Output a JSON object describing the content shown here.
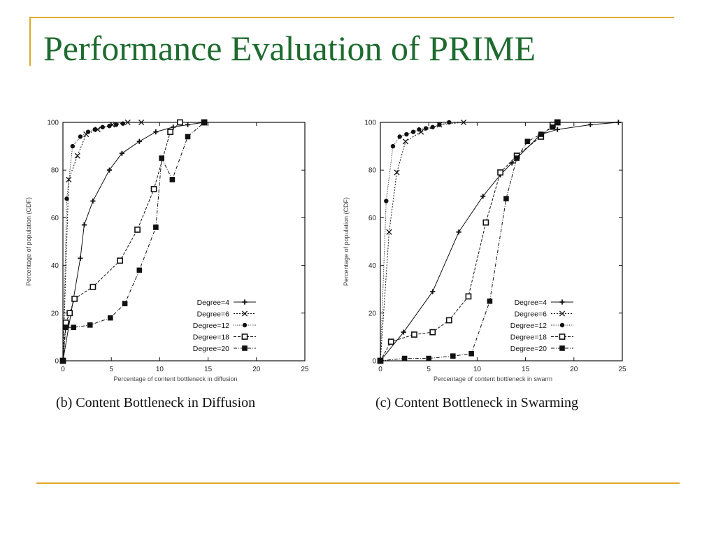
{
  "slide": {
    "title": "Performance Evaluation of PRIME",
    "accent_color": "#e0a82a",
    "title_color": "#1e6b2f"
  },
  "chart_data": [
    {
      "type": "line",
      "caption": "(b) Content Bottleneck in Diffusion",
      "xlabel": "Percentage of content bottleneck in diffusion",
      "ylabel": "Percentage of population (CDF)",
      "xlim": [
        0,
        25
      ],
      "ylim": [
        0,
        100
      ],
      "x_ticks": [
        "0",
        "5",
        "10",
        "15",
        "20",
        "25"
      ],
      "y_ticks": [
        "0",
        "20",
        "40",
        "60",
        "80",
        "100"
      ],
      "grid": false,
      "legend_position": "bottom-right",
      "series": [
        {
          "name": "Degree=4",
          "marker": "plus",
          "dash": "solid",
          "points": [
            [
              0,
              0
            ],
            [
              1.8,
              43
            ],
            [
              2.2,
              57
            ],
            [
              3.1,
              67
            ],
            [
              4.8,
              80
            ],
            [
              6.1,
              87
            ],
            [
              7.9,
              92
            ],
            [
              9.6,
              96
            ],
            [
              11.4,
              98
            ],
            [
              12.9,
              99
            ],
            [
              14.6,
              100
            ]
          ]
        },
        {
          "name": "Degree=6",
          "marker": "cross",
          "dash": "dotted",
          "points": [
            [
              0,
              0
            ],
            [
              0.6,
              76
            ],
            [
              1.5,
              86
            ],
            [
              2.4,
              95
            ],
            [
              3.6,
              97
            ],
            [
              5.1,
              99
            ],
            [
              6.7,
              100
            ],
            [
              8.1,
              100
            ]
          ]
        },
        {
          "name": "Degree=12",
          "marker": "circle",
          "dash": "fine-dotted",
          "points": [
            [
              0,
              0
            ],
            [
              0.4,
              68
            ],
            [
              1.0,
              90
            ],
            [
              1.8,
              94
            ],
            [
              2.6,
              96
            ],
            [
              3.3,
              97
            ],
            [
              4.1,
              98
            ],
            [
              4.8,
              98.5
            ],
            [
              5.5,
              99
            ],
            [
              6.2,
              99.5
            ]
          ]
        },
        {
          "name": "Degree=18",
          "marker": "square-open",
          "dash": "short-dash",
          "points": [
            [
              0,
              0
            ],
            [
              0.3,
              16
            ],
            [
              0.7,
              20
            ],
            [
              1.2,
              26
            ],
            [
              3.1,
              31
            ],
            [
              5.9,
              42
            ],
            [
              7.7,
              55
            ],
            [
              9.4,
              72
            ],
            [
              11.1,
              96
            ],
            [
              12.1,
              100
            ],
            [
              14.6,
              100
            ]
          ]
        },
        {
          "name": "Degree=20",
          "marker": "square-filled",
          "dash": "dash-dot",
          "points": [
            [
              0,
              0
            ],
            [
              0.3,
              14
            ],
            [
              1.1,
              14
            ],
            [
              2.8,
              15
            ],
            [
              4.9,
              18
            ],
            [
              6.4,
              24
            ],
            [
              7.9,
              38
            ],
            [
              9.6,
              56
            ],
            [
              10.2,
              85
            ],
            [
              11.3,
              76
            ],
            [
              12.9,
              94
            ],
            [
              14.6,
              100
            ]
          ]
        }
      ]
    },
    {
      "type": "line",
      "caption": "(c) Content Bottleneck in Swarming",
      "xlabel": "Percentage of content bottleneck in swarm",
      "ylabel": "Percentage of population (CDF)",
      "xlim": [
        0,
        25
      ],
      "ylim": [
        0,
        100
      ],
      "x_ticks": [
        "0",
        "5",
        "10",
        "15",
        "20",
        "25"
      ],
      "y_ticks": [
        "0",
        "20",
        "40",
        "60",
        "80",
        "100"
      ],
      "grid": false,
      "legend_position": "bottom-right",
      "series": [
        {
          "name": "Degree=4",
          "marker": "plus",
          "dash": "solid",
          "points": [
            [
              0,
              0
            ],
            [
              2.4,
              12
            ],
            [
              5.4,
              29
            ],
            [
              8.1,
              54
            ],
            [
              10.6,
              69
            ],
            [
              12.4,
              78
            ],
            [
              13.6,
              83
            ],
            [
              16.6,
              95
            ],
            [
              18.3,
              97
            ],
            [
              21.7,
              99
            ],
            [
              24.6,
              100
            ]
          ]
        },
        {
          "name": "Degree=6",
          "marker": "cross",
          "dash": "dotted",
          "points": [
            [
              0,
              0
            ],
            [
              0.9,
              54
            ],
            [
              1.7,
              79
            ],
            [
              2.6,
              92
            ],
            [
              4.2,
              96
            ],
            [
              6.1,
              99
            ],
            [
              8.6,
              100
            ]
          ]
        },
        {
          "name": "Degree=12",
          "marker": "circle",
          "dash": "fine-dotted",
          "points": [
            [
              0,
              0
            ],
            [
              0.6,
              67
            ],
            [
              1.3,
              90
            ],
            [
              2.0,
              94
            ],
            [
              2.7,
              95
            ],
            [
              3.4,
              96
            ],
            [
              4.0,
              97
            ],
            [
              4.7,
              97.5
            ],
            [
              5.4,
              98
            ],
            [
              6.1,
              99
            ],
            [
              7.1,
              100
            ]
          ]
        },
        {
          "name": "Degree=18",
          "marker": "square-open",
          "dash": "short-dash",
          "points": [
            [
              0,
              0
            ],
            [
              1.1,
              8
            ],
            [
              3.5,
              11
            ],
            [
              5.4,
              12
            ],
            [
              7.1,
              17
            ],
            [
              9.1,
              27
            ],
            [
              10.9,
              58
            ],
            [
              12.4,
              79
            ],
            [
              14.1,
              86
            ],
            [
              16.6,
              94
            ],
            [
              17.8,
              99
            ],
            [
              18.3,
              100
            ]
          ]
        },
        {
          "name": "Degree=20",
          "marker": "square-filled",
          "dash": "dash-dot",
          "points": [
            [
              0,
              0
            ],
            [
              2.5,
              1
            ],
            [
              5.0,
              1
            ],
            [
              7.5,
              2
            ],
            [
              9.4,
              3
            ],
            [
              11.3,
              25
            ],
            [
              13.0,
              68
            ],
            [
              14.1,
              85
            ],
            [
              15.2,
              92
            ],
            [
              16.6,
              95
            ],
            [
              17.8,
              98
            ],
            [
              18.3,
              100
            ]
          ]
        }
      ]
    }
  ]
}
